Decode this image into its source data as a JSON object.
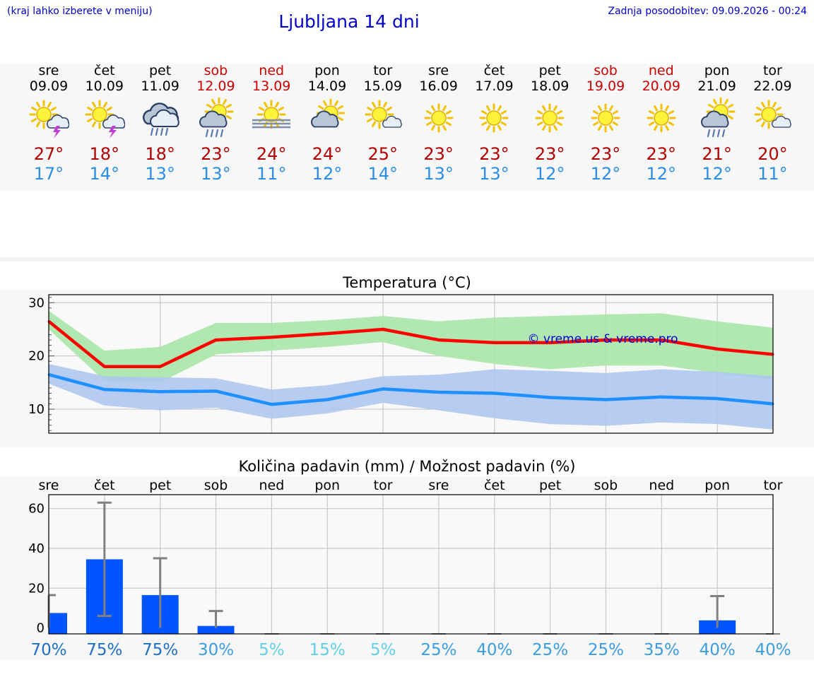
{
  "header": {
    "note": "(kraj lahko izberete v meniju)",
    "title": "Ljubljana 14 dni",
    "updated": "Zadnja posodobitev: 09.09.2026 - 00:24"
  },
  "colors": {
    "max_line": "#ff0000",
    "min_line": "#1e90ff",
    "max_band": "#a8e6a8",
    "min_band": "#aec6f0",
    "bar": "#0055ff",
    "error_bar": "#808080",
    "weekend": "#cc0000"
  },
  "days": [
    {
      "name": "sre",
      "date": "09.09",
      "weekend": false,
      "icon": "sun-cloud-thunder-icon",
      "max": "27°",
      "min": "17°"
    },
    {
      "name": "čet",
      "date": "10.09",
      "weekend": false,
      "icon": "sun-cloud-thunder-icon",
      "max": "18°",
      "min": "14°"
    },
    {
      "name": "pet",
      "date": "11.09",
      "weekend": false,
      "icon": "cloud-rain-icon",
      "max": "18°",
      "min": "13°"
    },
    {
      "name": "sob",
      "date": "12.09",
      "weekend": true,
      "icon": "sun-cloud-rain-icon",
      "max": "23°",
      "min": "13°"
    },
    {
      "name": "ned",
      "date": "13.09",
      "weekend": true,
      "icon": "sun-fog-icon",
      "max": "24°",
      "min": "11°"
    },
    {
      "name": "pon",
      "date": "14.09",
      "weekend": false,
      "icon": "sun-cloud-icon",
      "max": "24°",
      "min": "12°"
    },
    {
      "name": "tor",
      "date": "15.09",
      "weekend": false,
      "icon": "sun-small-cloud-icon",
      "max": "25°",
      "min": "14°"
    },
    {
      "name": "sre",
      "date": "16.09",
      "weekend": false,
      "icon": "sun-icon",
      "max": "23°",
      "min": "13°"
    },
    {
      "name": "čet",
      "date": "17.09",
      "weekend": false,
      "icon": "sun-icon",
      "max": "23°",
      "min": "13°"
    },
    {
      "name": "pet",
      "date": "18.09",
      "weekend": false,
      "icon": "sun-icon",
      "max": "23°",
      "min": "12°"
    },
    {
      "name": "sob",
      "date": "19.09",
      "weekend": true,
      "icon": "sun-icon",
      "max": "23°",
      "min": "12°"
    },
    {
      "name": "ned",
      "date": "20.09",
      "weekend": true,
      "icon": "sun-icon",
      "max": "23°",
      "min": "12°"
    },
    {
      "name": "pon",
      "date": "21.09",
      "weekend": false,
      "icon": "sun-cloud-rain-icon",
      "max": "21°",
      "min": "12°"
    },
    {
      "name": "tor",
      "date": "22.09",
      "weekend": false,
      "icon": "sun-small-cloud-icon",
      "max": "20°",
      "min": "11°"
    }
  ],
  "chart_data": [
    {
      "type": "line",
      "title": "Temperatura (°C)",
      "watermark": "© vreme.us & vreme.pro",
      "categories": [
        "09.09",
        "10.09",
        "11.09",
        "12.09",
        "13.09",
        "14.09",
        "15.09",
        "16.09",
        "17.09",
        "18.09",
        "19.09",
        "20.09",
        "21.09",
        "22.09"
      ],
      "ylim": [
        5.5,
        31.5
      ],
      "yticks": [
        10,
        20,
        30
      ],
      "grid": true,
      "series": [
        {
          "values": [
            26.5,
            18.0,
            18.0,
            23.0,
            23.5,
            24.2,
            25.0,
            23.0,
            22.5,
            22.5,
            23.0,
            23.0,
            21.3,
            20.3
          ],
          "band_upper": [
            28.5,
            21.0,
            21.7,
            26.2,
            26.2,
            26.7,
            27.5,
            26.5,
            27.2,
            27.5,
            27.8,
            28.0,
            26.5,
            25.3
          ],
          "band_lower": [
            25.0,
            15.3,
            15.0,
            20.3,
            21.0,
            21.7,
            22.6,
            20.0,
            18.5,
            17.5,
            18.2,
            18.2,
            16.8,
            15.5
          ]
        },
        {
          "values": [
            16.5,
            13.7,
            13.3,
            13.4,
            10.9,
            11.8,
            13.8,
            13.2,
            13.0,
            12.2,
            11.8,
            12.3,
            12.0,
            11.0
          ],
          "band_upper": [
            18.5,
            16.2,
            16.0,
            15.8,
            13.7,
            14.5,
            16.2,
            16.5,
            17.5,
            17.2,
            16.8,
            17.5,
            17.0,
            16.2
          ],
          "band_lower": [
            14.8,
            10.7,
            9.8,
            10.3,
            8.2,
            9.2,
            11.2,
            9.8,
            8.3,
            7.2,
            6.9,
            7.5,
            7.2,
            6.2
          ]
        }
      ]
    },
    {
      "type": "bar",
      "title": "Količina padavin (mm) / Možnost padavin (%)",
      "categories": [
        "sre",
        "čet",
        "pet",
        "sob",
        "ned",
        "pon",
        "tor",
        "sre",
        "čet",
        "pet",
        "sob",
        "ned",
        "pon",
        "tor"
      ],
      "values": [
        7.5,
        34.5,
        16.5,
        1.0,
        0,
        0,
        0,
        0,
        0,
        0,
        0,
        0,
        3.8,
        0
      ],
      "error_upper": [
        16.5,
        63.0,
        35.0,
        8.5,
        0,
        0,
        0,
        0,
        0,
        0,
        0,
        0,
        16.0,
        0
      ],
      "error_lower": [
        0,
        6.0,
        0,
        0,
        0,
        0,
        0,
        0,
        0,
        0,
        0,
        0,
        0,
        0
      ],
      "probabilities": [
        "70%",
        "75%",
        "75%",
        "30%",
        "5%",
        "15%",
        "5%",
        "25%",
        "40%",
        "25%",
        "25%",
        "35%",
        "40%",
        "40%"
      ],
      "probability_values": [
        70,
        75,
        75,
        30,
        5,
        15,
        5,
        25,
        40,
        25,
        25,
        35,
        40,
        40
      ],
      "ylim": [
        -3,
        67
      ],
      "yticks": [
        0,
        20,
        40,
        60
      ],
      "grid": true
    }
  ]
}
